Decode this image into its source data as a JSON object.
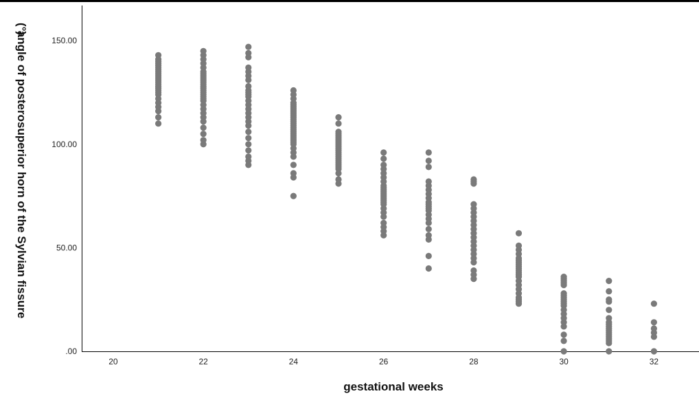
{
  "chart_data": {
    "type": "scatter",
    "title": "",
    "xlabel": "gestational weeks",
    "ylabel": "angle of posterosuperior horn of the Sylvian fissure",
    "ylabel_unit": "(°)",
    "xlim": [
      19.3,
      33
    ],
    "ylim": [
      0,
      167
    ],
    "x_ticks": [
      20,
      22,
      24,
      26,
      28,
      30,
      32
    ],
    "y_ticks": [
      0,
      50,
      100,
      150
    ],
    "y_tick_labels": [
      ".00",
      "50.00",
      "100.00",
      "150.00"
    ],
    "grid": false,
    "point_color": "#7a7a7a",
    "series": [
      {
        "points": [
          [
            21,
            110
          ],
          [
            21,
            113
          ],
          [
            21,
            116
          ],
          [
            21,
            118
          ],
          [
            21,
            120
          ],
          [
            21,
            122
          ],
          [
            21,
            124
          ],
          [
            21,
            125
          ],
          [
            21,
            126
          ],
          [
            21,
            127
          ],
          [
            21,
            128
          ],
          [
            21,
            129
          ],
          [
            21,
            130
          ],
          [
            21,
            131
          ],
          [
            21,
            132
          ],
          [
            21,
            133
          ],
          [
            21,
            134
          ],
          [
            21,
            135
          ],
          [
            21,
            136
          ],
          [
            21,
            137
          ],
          [
            21,
            138
          ],
          [
            21,
            139
          ],
          [
            21,
            140
          ],
          [
            21,
            141
          ],
          [
            21,
            143
          ],
          [
            22,
            100
          ],
          [
            22,
            102
          ],
          [
            22,
            105
          ],
          [
            22,
            108
          ],
          [
            22,
            111
          ],
          [
            22,
            113
          ],
          [
            22,
            115
          ],
          [
            22,
            117
          ],
          [
            22,
            119
          ],
          [
            22,
            121
          ],
          [
            22,
            122
          ],
          [
            22,
            123
          ],
          [
            22,
            124
          ],
          [
            22,
            125
          ],
          [
            22,
            126
          ],
          [
            22,
            127
          ],
          [
            22,
            128
          ],
          [
            22,
            129
          ],
          [
            22,
            130
          ],
          [
            22,
            131
          ],
          [
            22,
            132
          ],
          [
            22,
            133
          ],
          [
            22,
            134
          ],
          [
            22,
            135
          ],
          [
            22,
            137
          ],
          [
            22,
            139
          ],
          [
            22,
            141
          ],
          [
            22,
            143
          ],
          [
            22,
            145
          ],
          [
            23,
            90
          ],
          [
            23,
            92
          ],
          [
            23,
            94
          ],
          [
            23,
            97
          ],
          [
            23,
            100
          ],
          [
            23,
            103
          ],
          [
            23,
            106
          ],
          [
            23,
            109
          ],
          [
            23,
            111
          ],
          [
            23,
            113
          ],
          [
            23,
            115
          ],
          [
            23,
            117
          ],
          [
            23,
            119
          ],
          [
            23,
            121
          ],
          [
            23,
            123
          ],
          [
            23,
            124
          ],
          [
            23,
            125
          ],
          [
            23,
            126
          ],
          [
            23,
            128
          ],
          [
            23,
            131
          ],
          [
            23,
            133
          ],
          [
            23,
            135
          ],
          [
            23,
            137
          ],
          [
            23,
            142
          ],
          [
            23,
            144
          ],
          [
            23,
            147
          ],
          [
            24,
            75
          ],
          [
            24,
            84
          ],
          [
            24,
            86
          ],
          [
            24,
            90
          ],
          [
            24,
            94
          ],
          [
            24,
            96
          ],
          [
            24,
            98
          ],
          [
            24,
            100
          ],
          [
            24,
            101
          ],
          [
            24,
            102
          ],
          [
            24,
            103
          ],
          [
            24,
            104
          ],
          [
            24,
            105
          ],
          [
            24,
            106
          ],
          [
            24,
            107
          ],
          [
            24,
            108
          ],
          [
            24,
            109
          ],
          [
            24,
            110
          ],
          [
            24,
            111
          ],
          [
            24,
            112
          ],
          [
            24,
            113
          ],
          [
            24,
            114
          ],
          [
            24,
            115
          ],
          [
            24,
            116
          ],
          [
            24,
            117
          ],
          [
            24,
            118
          ],
          [
            24,
            119
          ],
          [
            24,
            120
          ],
          [
            24,
            122
          ],
          [
            24,
            124
          ],
          [
            24,
            126
          ],
          [
            25,
            81
          ],
          [
            25,
            83
          ],
          [
            25,
            86
          ],
          [
            25,
            88
          ],
          [
            25,
            89
          ],
          [
            25,
            90
          ],
          [
            25,
            91
          ],
          [
            25,
            92
          ],
          [
            25,
            93
          ],
          [
            25,
            94
          ],
          [
            25,
            95
          ],
          [
            25,
            96
          ],
          [
            25,
            97
          ],
          [
            25,
            98
          ],
          [
            25,
            99
          ],
          [
            25,
            100
          ],
          [
            25,
            101
          ],
          [
            25,
            102
          ],
          [
            25,
            103
          ],
          [
            25,
            104
          ],
          [
            25,
            105
          ],
          [
            25,
            106
          ],
          [
            25,
            110
          ],
          [
            25,
            113
          ],
          [
            26,
            56
          ],
          [
            26,
            58
          ],
          [
            26,
            60
          ],
          [
            26,
            62
          ],
          [
            26,
            65
          ],
          [
            26,
            67
          ],
          [
            26,
            69
          ],
          [
            26,
            71
          ],
          [
            26,
            72
          ],
          [
            26,
            73
          ],
          [
            26,
            74
          ],
          [
            26,
            75
          ],
          [
            26,
            76
          ],
          [
            26,
            77
          ],
          [
            26,
            78
          ],
          [
            26,
            79
          ],
          [
            26,
            80
          ],
          [
            26,
            82
          ],
          [
            26,
            84
          ],
          [
            26,
            86
          ],
          [
            26,
            88
          ],
          [
            26,
            90
          ],
          [
            26,
            93
          ],
          [
            26,
            96
          ],
          [
            27,
            40
          ],
          [
            27,
            46
          ],
          [
            27,
            54
          ],
          [
            27,
            56
          ],
          [
            27,
            59
          ],
          [
            27,
            62
          ],
          [
            27,
            64
          ],
          [
            27,
            66
          ],
          [
            27,
            68
          ],
          [
            27,
            69
          ],
          [
            27,
            70
          ],
          [
            27,
            71
          ],
          [
            27,
            72
          ],
          [
            27,
            74
          ],
          [
            27,
            76
          ],
          [
            27,
            78
          ],
          [
            27,
            80
          ],
          [
            27,
            82
          ],
          [
            27,
            89
          ],
          [
            27,
            92
          ],
          [
            27,
            96
          ],
          [
            28,
            35
          ],
          [
            28,
            37
          ],
          [
            28,
            39
          ],
          [
            28,
            43
          ],
          [
            28,
            45
          ],
          [
            28,
            47
          ],
          [
            28,
            49
          ],
          [
            28,
            51
          ],
          [
            28,
            53
          ],
          [
            28,
            55
          ],
          [
            28,
            57
          ],
          [
            28,
            59
          ],
          [
            28,
            61
          ],
          [
            28,
            63
          ],
          [
            28,
            65
          ],
          [
            28,
            67
          ],
          [
            28,
            69
          ],
          [
            28,
            71
          ],
          [
            28,
            81
          ],
          [
            28,
            82
          ],
          [
            28,
            83
          ],
          [
            29,
            23
          ],
          [
            29,
            24
          ],
          [
            29,
            25
          ],
          [
            29,
            26
          ],
          [
            29,
            28
          ],
          [
            29,
            30
          ],
          [
            29,
            32
          ],
          [
            29,
            34
          ],
          [
            29,
            36
          ],
          [
            29,
            37
          ],
          [
            29,
            38
          ],
          [
            29,
            39
          ],
          [
            29,
            40
          ],
          [
            29,
            41
          ],
          [
            29,
            42
          ],
          [
            29,
            43
          ],
          [
            29,
            44
          ],
          [
            29,
            45
          ],
          [
            29,
            47
          ],
          [
            29,
            49
          ],
          [
            29,
            51
          ],
          [
            29,
            57
          ],
          [
            30,
            0
          ],
          [
            30,
            5
          ],
          [
            30,
            8
          ],
          [
            30,
            12
          ],
          [
            30,
            14
          ],
          [
            30,
            16
          ],
          [
            30,
            18
          ],
          [
            30,
            20
          ],
          [
            30,
            22
          ],
          [
            30,
            23
          ],
          [
            30,
            24
          ],
          [
            30,
            25
          ],
          [
            30,
            26
          ],
          [
            30,
            27
          ],
          [
            30,
            28
          ],
          [
            30,
            32
          ],
          [
            30,
            33
          ],
          [
            30,
            34
          ],
          [
            30,
            35
          ],
          [
            30,
            36
          ],
          [
            31,
            0
          ],
          [
            31,
            4
          ],
          [
            31,
            5
          ],
          [
            31,
            6
          ],
          [
            31,
            7
          ],
          [
            31,
            8
          ],
          [
            31,
            9
          ],
          [
            31,
            10
          ],
          [
            31,
            11
          ],
          [
            31,
            12
          ],
          [
            31,
            13
          ],
          [
            31,
            14
          ],
          [
            31,
            16
          ],
          [
            31,
            20
          ],
          [
            31,
            24
          ],
          [
            31,
            25
          ],
          [
            31,
            29
          ],
          [
            31,
            34
          ],
          [
            32,
            0
          ],
          [
            32,
            7
          ],
          [
            32,
            9
          ],
          [
            32,
            11
          ],
          [
            32,
            14
          ],
          [
            32,
            23
          ]
        ]
      }
    ]
  }
}
